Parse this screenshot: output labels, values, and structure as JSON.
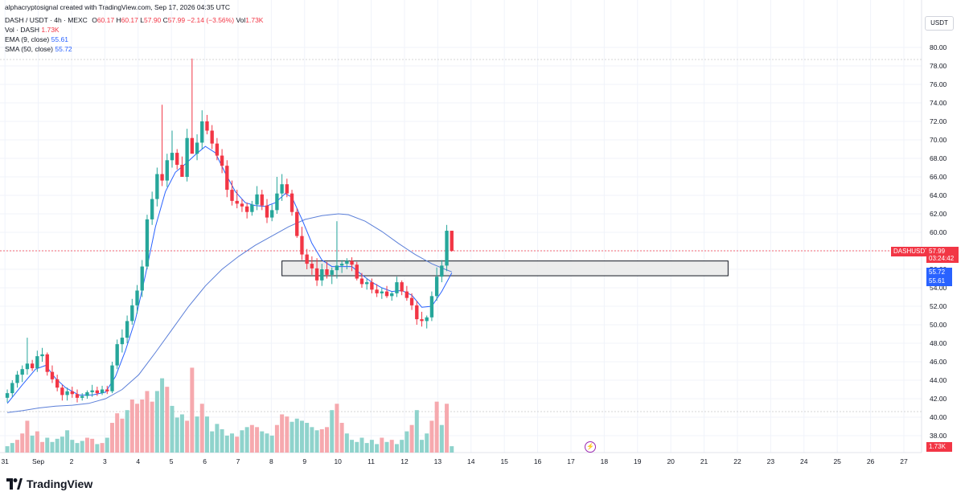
{
  "header": {
    "created_line": "alphacryptosignal created with TradingView.com, Sep 17, 2026 04:35 UTC",
    "symbol": "DASH / USDT · 4h · MEXC",
    "o_label": "O",
    "o_value": "60.17",
    "h_label": "H",
    "h_value": "60.17",
    "l_label": "L",
    "l_value": "57.90",
    "c_label": "C",
    "c_value": "57.99",
    "change": "−2.14 (−3.56%)",
    "vol_label": "Vol",
    "vol_value": "1.73K",
    "vol_ind_label": "Vol · DASH",
    "vol_ind_value": "1.73K",
    "ema_label": "EMA (9, close)",
    "ema_value": "55.61",
    "sma_label": "SMA (50, close)",
    "sma_value": "55.72"
  },
  "axis": {
    "currency": "USDT",
    "price_ticks": [
      "80.00",
      "78.00",
      "76.00",
      "74.00",
      "72.00",
      "70.00",
      "68.00",
      "66.00",
      "64.00",
      "62.00",
      "60.00",
      "58.00",
      "56.00",
      "54.00",
      "52.00",
      "50.00",
      "48.00",
      "46.00",
      "44.00",
      "42.00",
      "40.00",
      "38.00"
    ],
    "time_ticks": [
      "31",
      "Sep",
      "2",
      "3",
      "4",
      "5",
      "6",
      "7",
      "8",
      "9",
      "10",
      "11",
      "12",
      "13",
      "14",
      "15",
      "16",
      "17",
      "18",
      "19",
      "20",
      "21",
      "22",
      "23",
      "24",
      "25",
      "26",
      "27"
    ]
  },
  "badges": {
    "symbol_label": "DASHUSDT",
    "last_price": "57.99",
    "countdown": "03:24:42",
    "sma_badge": "55.72",
    "ema_badge": "55.61",
    "volume_badge": "1.73K"
  },
  "colors": {
    "up": "#26a69a",
    "down": "#f23645",
    "ma": "#2962ff",
    "sma": "#5b7fd8",
    "zone_fill": "#e8e8e8"
  },
  "footer": {
    "brand": "TradingView"
  },
  "chart_data": {
    "type": "candlestick",
    "timeframe": "4h",
    "ylim": [
      37,
      81
    ],
    "zone": {
      "from": 55.3,
      "to": 56.9,
      "start_day": 8.3,
      "end_day": 21.7
    },
    "candles": [
      [
        0.05,
        42.1,
        43.0,
        41.6,
        42.6
      ],
      [
        0.2,
        42.6,
        44.0,
        42.2,
        43.7
      ],
      [
        0.35,
        43.7,
        45.0,
        43.2,
        44.6
      ],
      [
        0.5,
        44.6,
        45.6,
        43.8,
        45.2
      ],
      [
        0.65,
        45.2,
        48.6,
        44.6,
        45.8
      ],
      [
        0.8,
        45.8,
        46.2,
        45.0,
        45.3
      ],
      [
        0.95,
        45.3,
        47.2,
        44.9,
        46.6
      ],
      [
        1.1,
        46.6,
        47.5,
        46.0,
        46.8
      ],
      [
        1.25,
        46.8,
        47.0,
        44.5,
        44.9
      ],
      [
        1.4,
        44.9,
        45.6,
        43.7,
        44.1
      ],
      [
        1.55,
        44.1,
        44.6,
        42.8,
        43.2
      ],
      [
        1.7,
        43.2,
        43.5,
        41.8,
        42.4
      ],
      [
        1.85,
        42.4,
        43.2,
        41.8,
        42.8
      ],
      [
        2.0,
        42.8,
        43.3,
        42.1,
        42.5
      ],
      [
        2.15,
        42.5,
        43.0,
        41.6,
        42.1
      ],
      [
        2.3,
        42.1,
        42.6,
        41.8,
        42.3
      ],
      [
        2.45,
        42.3,
        42.9,
        42.0,
        42.7
      ],
      [
        2.6,
        42.7,
        43.5,
        42.2,
        42.9
      ],
      [
        2.75,
        42.9,
        43.3,
        42.3,
        42.6
      ],
      [
        2.9,
        42.6,
        43.4,
        42.4,
        43.0
      ],
      [
        3.05,
        43.0,
        43.4,
        42.5,
        42.8
      ],
      [
        3.2,
        42.8,
        46.0,
        42.6,
        45.6
      ],
      [
        3.35,
        45.6,
        48.4,
        45.2,
        47.9
      ],
      [
        3.5,
        47.9,
        49.5,
        47.0,
        48.6
      ],
      [
        3.65,
        48.6,
        51.0,
        48.0,
        50.4
      ],
      [
        3.8,
        50.4,
        52.8,
        50.0,
        52.1
      ],
      [
        3.95,
        52.1,
        54.3,
        51.2,
        53.7
      ],
      [
        4.1,
        53.7,
        57.0,
        53.0,
        56.3
      ],
      [
        4.25,
        56.3,
        61.9,
        56.0,
        61.4
      ],
      [
        4.4,
        61.4,
        64.4,
        60.8,
        63.6
      ],
      [
        4.55,
        63.6,
        67.0,
        62.8,
        66.3
      ],
      [
        4.7,
        66.3,
        73.8,
        65.0,
        65.6
      ],
      [
        4.85,
        65.6,
        68.5,
        64.9,
        67.8
      ],
      [
        5.0,
        67.8,
        71.0,
        67.0,
        68.6
      ],
      [
        5.15,
        68.6,
        69.0,
        66.8,
        67.3
      ],
      [
        5.3,
        67.3,
        68.2,
        66.2,
        66.0
      ],
      [
        5.45,
        66.0,
        71.2,
        65.5,
        70.2
      ],
      [
        5.6,
        70.2,
        78.8,
        68.6,
        68.5
      ],
      [
        5.75,
        68.5,
        70.6,
        67.8,
        69.7
      ],
      [
        5.9,
        69.7,
        73.2,
        69.0,
        72.0
      ],
      [
        6.05,
        72.0,
        72.7,
        70.6,
        71.0
      ],
      [
        6.2,
        71.0,
        71.6,
        69.0,
        69.6
      ],
      [
        6.35,
        69.6,
        70.2,
        67.8,
        68.3
      ],
      [
        6.5,
        68.3,
        69.0,
        66.4,
        67.2
      ],
      [
        6.65,
        67.2,
        67.8,
        63.8,
        64.6
      ],
      [
        6.8,
        64.6,
        65.6,
        62.9,
        63.4
      ],
      [
        6.95,
        63.4,
        64.6,
        62.6,
        63.1
      ],
      [
        7.1,
        63.1,
        63.6,
        62.2,
        62.8
      ],
      [
        7.25,
        62.8,
        63.2,
        61.5,
        62.2
      ],
      [
        7.4,
        62.2,
        63.4,
        61.8,
        63.0
      ],
      [
        7.55,
        63.0,
        65.0,
        62.4,
        64.1
      ],
      [
        7.7,
        64.1,
        64.6,
        62.4,
        62.9
      ],
      [
        7.85,
        62.9,
        63.6,
        61.0,
        61.6
      ],
      [
        8.0,
        61.6,
        63.0,
        61.2,
        62.4
      ],
      [
        8.15,
        62.4,
        66.0,
        62.0,
        64.2
      ],
      [
        8.3,
        64.2,
        66.3,
        63.4,
        65.2
      ],
      [
        8.45,
        65.2,
        65.8,
        63.8,
        64.2
      ],
      [
        8.6,
        64.2,
        64.6,
        61.8,
        62.2
      ],
      [
        8.75,
        62.2,
        62.6,
        59.4,
        59.6
      ],
      [
        8.9,
        59.6,
        60.6,
        57.0,
        57.6
      ],
      [
        9.05,
        57.6,
        58.2,
        56.0,
        56.6
      ],
      [
        9.2,
        56.6,
        57.4,
        55.4,
        56.1
      ],
      [
        9.35,
        56.1,
        57.2,
        54.2,
        54.8
      ],
      [
        9.5,
        54.8,
        56.6,
        54.2,
        56.0
      ],
      [
        9.65,
        56.0,
        56.8,
        55.0,
        55.4
      ],
      [
        9.8,
        55.4,
        56.2,
        54.4,
        55.9
      ],
      [
        9.95,
        55.9,
        61.2,
        55.0,
        56.4
      ],
      [
        10.1,
        56.4,
        57.0,
        55.6,
        56.6
      ],
      [
        10.25,
        56.6,
        57.2,
        56.0,
        56.9
      ],
      [
        10.4,
        56.9,
        57.3,
        55.8,
        56.5
      ],
      [
        10.55,
        56.5,
        56.8,
        54.8,
        55.0
      ],
      [
        10.7,
        55.0,
        55.6,
        54.0,
        54.4
      ],
      [
        10.85,
        54.4,
        55.0,
        53.8,
        54.6
      ],
      [
        11.0,
        54.6,
        55.0,
        53.4,
        53.8
      ],
      [
        11.15,
        53.8,
        54.4,
        53.0,
        53.4
      ],
      [
        11.3,
        53.4,
        54.0,
        52.8,
        53.6
      ],
      [
        11.45,
        53.6,
        54.2,
        52.9,
        53.1
      ],
      [
        11.6,
        53.1,
        53.6,
        52.6,
        53.4
      ],
      [
        11.75,
        53.4,
        55.2,
        53.0,
        54.6
      ],
      [
        11.9,
        54.6,
        54.8,
        53.2,
        53.6
      ],
      [
        12.05,
        53.6,
        54.2,
        52.6,
        52.9
      ],
      [
        12.2,
        52.9,
        53.4,
        51.6,
        52.1
      ],
      [
        12.35,
        52.1,
        52.6,
        50.0,
        50.6
      ],
      [
        12.5,
        50.6,
        51.4,
        49.8,
        50.4
      ],
      [
        12.65,
        50.4,
        51.0,
        49.6,
        50.8
      ],
      [
        12.8,
        50.8,
        53.6,
        50.4,
        53.1
      ],
      [
        12.95,
        53.1,
        56.2,
        52.6,
        55.2
      ],
      [
        13.1,
        55.2,
        57.0,
        54.6,
        56.4
      ],
      [
        13.25,
        56.4,
        60.8,
        55.8,
        60.17
      ],
      [
        13.4,
        60.17,
        60.17,
        57.9,
        57.99
      ]
    ],
    "volumes": [
      [
        0.05,
        6,
        1
      ],
      [
        0.2,
        9,
        1
      ],
      [
        0.35,
        12,
        0
      ],
      [
        0.5,
        18,
        0
      ],
      [
        0.65,
        30,
        0
      ],
      [
        0.8,
        16,
        1
      ],
      [
        0.95,
        20,
        0
      ],
      [
        1.1,
        10,
        0
      ],
      [
        1.25,
        14,
        1
      ],
      [
        1.4,
        10,
        1
      ],
      [
        1.55,
        13,
        1
      ],
      [
        1.7,
        15,
        1
      ],
      [
        1.85,
        21,
        1
      ],
      [
        2.0,
        12,
        1
      ],
      [
        2.15,
        9,
        1
      ],
      [
        2.3,
        11,
        1
      ],
      [
        2.45,
        14,
        0
      ],
      [
        2.6,
        13,
        0
      ],
      [
        2.75,
        8,
        1
      ],
      [
        2.9,
        9,
        0
      ],
      [
        3.05,
        14,
        1
      ],
      [
        3.2,
        28,
        0
      ],
      [
        3.35,
        37,
        0
      ],
      [
        3.5,
        32,
        0
      ],
      [
        3.65,
        40,
        1
      ],
      [
        3.8,
        50,
        0
      ],
      [
        3.95,
        46,
        0
      ],
      [
        4.1,
        50,
        0
      ],
      [
        4.25,
        58,
        0
      ],
      [
        4.4,
        48,
        0
      ],
      [
        4.55,
        58,
        1
      ],
      [
        4.7,
        70,
        1
      ],
      [
        4.85,
        62,
        0
      ],
      [
        5.0,
        44,
        1
      ],
      [
        5.15,
        33,
        1
      ],
      [
        5.3,
        36,
        1
      ],
      [
        5.45,
        30,
        0
      ],
      [
        5.6,
        80,
        0
      ],
      [
        5.75,
        34,
        1
      ],
      [
        5.9,
        46,
        0
      ],
      [
        6.05,
        34,
        1
      ],
      [
        6.2,
        20,
        1
      ],
      [
        6.35,
        27,
        1
      ],
      [
        6.5,
        22,
        1
      ],
      [
        6.65,
        16,
        1
      ],
      [
        6.8,
        18,
        1
      ],
      [
        6.95,
        15,
        0
      ],
      [
        7.1,
        21,
        1
      ],
      [
        7.25,
        24,
        1
      ],
      [
        7.4,
        26,
        0
      ],
      [
        7.55,
        24,
        0
      ],
      [
        7.7,
        20,
        1
      ],
      [
        7.85,
        18,
        1
      ],
      [
        8.0,
        16,
        1
      ],
      [
        8.15,
        26,
        0
      ],
      [
        8.3,
        36,
        0
      ],
      [
        8.45,
        34,
        0
      ],
      [
        8.6,
        29,
        1
      ],
      [
        8.75,
        32,
        1
      ],
      [
        8.9,
        30,
        1
      ],
      [
        9.05,
        28,
        1
      ],
      [
        9.2,
        24,
        1
      ],
      [
        9.35,
        21,
        1
      ],
      [
        9.5,
        22,
        0
      ],
      [
        9.65,
        24,
        0
      ],
      [
        9.8,
        40,
        1
      ],
      [
        9.95,
        46,
        0
      ],
      [
        10.1,
        28,
        0
      ],
      [
        10.25,
        18,
        1
      ],
      [
        10.4,
        12,
        1
      ],
      [
        10.55,
        10,
        1
      ],
      [
        10.7,
        14,
        1
      ],
      [
        10.85,
        9,
        1
      ],
      [
        11.0,
        12,
        1
      ],
      [
        11.15,
        8,
        1
      ],
      [
        11.3,
        14,
        0
      ],
      [
        11.45,
        10,
        1
      ],
      [
        11.6,
        12,
        0
      ],
      [
        11.75,
        8,
        1
      ],
      [
        11.9,
        12,
        1
      ],
      [
        12.05,
        20,
        1
      ],
      [
        12.2,
        26,
        0
      ],
      [
        12.35,
        40,
        1
      ],
      [
        12.5,
        12,
        1
      ],
      [
        12.65,
        18,
        1
      ],
      [
        12.8,
        30,
        0
      ],
      [
        12.95,
        48,
        0
      ],
      [
        13.1,
        26,
        1
      ],
      [
        13.25,
        46,
        0
      ],
      [
        13.4,
        6,
        1
      ]
    ],
    "ema9": [
      [
        0.05,
        41.5
      ],
      [
        0.5,
        43.5
      ],
      [
        0.9,
        45.2
      ],
      [
        1.2,
        45.6
      ],
      [
        1.5,
        44.2
      ],
      [
        1.8,
        43.2
      ],
      [
        2.2,
        42.4
      ],
      [
        2.6,
        42.4
      ],
      [
        3.0,
        42.7
      ],
      [
        3.3,
        44.4
      ],
      [
        3.6,
        47.2
      ],
      [
        3.9,
        50.6
      ],
      [
        4.2,
        55.4
      ],
      [
        4.5,
        60.6
      ],
      [
        4.8,
        64.4
      ],
      [
        5.1,
        66.5
      ],
      [
        5.4,
        67.4
      ],
      [
        5.7,
        68.4
      ],
      [
        6.0,
        69.3
      ],
      [
        6.3,
        68.6
      ],
      [
        6.6,
        66.4
      ],
      [
        6.9,
        64.4
      ],
      [
        7.2,
        63.2
      ],
      [
        7.5,
        62.9
      ],
      [
        7.8,
        62.8
      ],
      [
        8.1,
        63.2
      ],
      [
        8.4,
        64.2
      ],
      [
        8.6,
        63.8
      ],
      [
        8.9,
        61.4
      ],
      [
        9.2,
        58.8
      ],
      [
        9.5,
        57.0
      ],
      [
        9.8,
        56.3
      ],
      [
        10.1,
        56.3
      ],
      [
        10.4,
        56.3
      ],
      [
        10.7,
        55.4
      ],
      [
        11.0,
        54.6
      ],
      [
        11.3,
        54.0
      ],
      [
        11.6,
        53.6
      ],
      [
        11.9,
        53.7
      ],
      [
        12.2,
        53.2
      ],
      [
        12.5,
        51.9
      ],
      [
        12.8,
        52.0
      ],
      [
        13.1,
        53.6
      ],
      [
        13.4,
        55.61
      ]
    ],
    "sma50": [
      [
        0.05,
        40.5
      ],
      [
        0.5,
        40.7
      ],
      [
        1.0,
        41.0
      ],
      [
        1.5,
        41.2
      ],
      [
        2.0,
        41.3
      ],
      [
        2.5,
        41.5
      ],
      [
        3.0,
        42.0
      ],
      [
        3.5,
        43.0
      ],
      [
        4.0,
        44.6
      ],
      [
        4.5,
        47.0
      ],
      [
        5.0,
        49.5
      ],
      [
        5.5,
        52.0
      ],
      [
        6.0,
        54.2
      ],
      [
        6.5,
        56.0
      ],
      [
        7.0,
        57.4
      ],
      [
        7.5,
        58.6
      ],
      [
        8.0,
        59.6
      ],
      [
        8.5,
        60.6
      ],
      [
        9.0,
        61.4
      ],
      [
        9.5,
        61.8
      ],
      [
        10.0,
        62.0
      ],
      [
        10.3,
        61.9
      ],
      [
        10.8,
        61.2
      ],
      [
        11.3,
        60.1
      ],
      [
        11.8,
        58.8
      ],
      [
        12.3,
        57.6
      ],
      [
        12.8,
        56.6
      ],
      [
        13.2,
        56.0
      ],
      [
        13.4,
        55.72
      ]
    ]
  }
}
